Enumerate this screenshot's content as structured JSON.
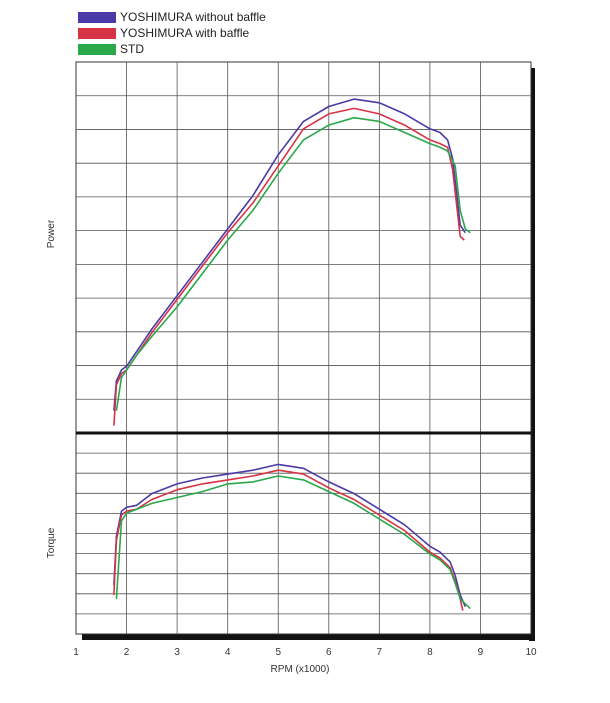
{
  "chart_data": [
    {
      "type": "line",
      "title": "",
      "ylabel": "Power",
      "xlabel": "",
      "xlim": [
        1,
        10
      ],
      "ylim": [
        0,
        100
      ],
      "grid": true,
      "series": [
        {
          "name": "YOSHIMURA without baffle",
          "color": "#4a3aa8",
          "points": [
            [
              1.75,
              6
            ],
            [
              1.8,
              14
            ],
            [
              1.9,
              17
            ],
            [
              2.0,
              18
            ],
            [
              2.2,
              22
            ],
            [
              2.5,
              28
            ],
            [
              3.0,
              37
            ],
            [
              3.5,
              46
            ],
            [
              4.0,
              55
            ],
            [
              4.5,
              64
            ],
            [
              5.0,
              75
            ],
            [
              5.5,
              84
            ],
            [
              6.0,
              88
            ],
            [
              6.5,
              90
            ],
            [
              7.0,
              89
            ],
            [
              7.5,
              86
            ],
            [
              8.0,
              82
            ],
            [
              8.2,
              81
            ],
            [
              8.35,
              79
            ],
            [
              8.45,
              74
            ],
            [
              8.55,
              62
            ],
            [
              8.6,
              56
            ],
            [
              8.7,
              54
            ]
          ]
        },
        {
          "name": "YOSHIMURA with baffle",
          "color": "#d63346",
          "points": [
            [
              1.75,
              2
            ],
            [
              1.8,
              13
            ],
            [
              1.9,
              16
            ],
            [
              2.0,
              17
            ],
            [
              2.2,
              21
            ],
            [
              2.5,
              27
            ],
            [
              3.0,
              36
            ],
            [
              3.5,
              45
            ],
            [
              4.0,
              54
            ],
            [
              4.5,
              62
            ],
            [
              5.0,
              72
            ],
            [
              5.5,
              82
            ],
            [
              6.0,
              86
            ],
            [
              6.5,
              87.5
            ],
            [
              7.0,
              86
            ],
            [
              7.5,
              83
            ],
            [
              8.0,
              79
            ],
            [
              8.2,
              78
            ],
            [
              8.35,
              77
            ],
            [
              8.45,
              71
            ],
            [
              8.55,
              59
            ],
            [
              8.6,
              53
            ],
            [
              8.68,
              52
            ]
          ]
        },
        {
          "name": "STD",
          "color": "#2aa84a",
          "points": [
            [
              1.8,
              6
            ],
            [
              1.9,
              15
            ],
            [
              2.0,
              17
            ],
            [
              2.2,
              21
            ],
            [
              2.5,
              26
            ],
            [
              3.0,
              34
            ],
            [
              3.5,
              43
            ],
            [
              4.0,
              52
            ],
            [
              4.5,
              60
            ],
            [
              5.0,
              70
            ],
            [
              5.5,
              79
            ],
            [
              6.0,
              83
            ],
            [
              6.5,
              85
            ],
            [
              7.0,
              84
            ],
            [
              7.5,
              81
            ],
            [
              8.0,
              78
            ],
            [
              8.2,
              77
            ],
            [
              8.35,
              76
            ],
            [
              8.5,
              72
            ],
            [
              8.6,
              60
            ],
            [
              8.7,
              55
            ],
            [
              8.8,
              54
            ]
          ]
        }
      ]
    },
    {
      "type": "line",
      "title": "",
      "ylabel": "Torque",
      "xlabel": "RPM (x1000)",
      "xlim": [
        1,
        10
      ],
      "ylim": [
        0,
        100
      ],
      "xticks": [
        "1",
        "2",
        "3",
        "4",
        "5",
        "6",
        "7",
        "8",
        "9",
        "10"
      ],
      "grid": true,
      "series": [
        {
          "name": "YOSHIMURA without baffle",
          "color": "#4a3aa8",
          "points": [
            [
              1.75,
              25
            ],
            [
              1.8,
              50
            ],
            [
              1.9,
              63
            ],
            [
              2.0,
              65
            ],
            [
              2.2,
              66
            ],
            [
              2.5,
              72
            ],
            [
              3.0,
              77
            ],
            [
              3.5,
              80
            ],
            [
              4.0,
              82
            ],
            [
              4.5,
              84
            ],
            [
              5.0,
              87
            ],
            [
              5.5,
              85
            ],
            [
              6.0,
              78
            ],
            [
              6.5,
              72
            ],
            [
              7.0,
              64
            ],
            [
              7.5,
              56
            ],
            [
              8.0,
              45
            ],
            [
              8.2,
              42
            ],
            [
              8.4,
              37
            ],
            [
              8.5,
              30
            ],
            [
              8.6,
              20
            ],
            [
              8.7,
              14
            ]
          ]
        },
        {
          "name": "YOSHIMURA with baffle",
          "color": "#d63346",
          "points": [
            [
              1.75,
              20
            ],
            [
              1.8,
              48
            ],
            [
              1.9,
              61
            ],
            [
              2.0,
              63
            ],
            [
              2.2,
              64
            ],
            [
              2.5,
              69
            ],
            [
              3.0,
              74
            ],
            [
              3.5,
              77
            ],
            [
              4.0,
              79
            ],
            [
              4.5,
              81
            ],
            [
              5.0,
              84
            ],
            [
              5.5,
              82
            ],
            [
              6.0,
              75
            ],
            [
              6.5,
              69
            ],
            [
              7.0,
              61
            ],
            [
              7.5,
              53
            ],
            [
              8.0,
              42
            ],
            [
              8.2,
              39
            ],
            [
              8.4,
              34
            ],
            [
              8.5,
              27
            ],
            [
              8.6,
              18
            ],
            [
              8.65,
              12
            ]
          ]
        },
        {
          "name": "STD",
          "color": "#2aa84a",
          "points": [
            [
              1.8,
              18
            ],
            [
              1.9,
              58
            ],
            [
              2.0,
              62
            ],
            [
              2.2,
              64
            ],
            [
              2.5,
              67
            ],
            [
              3.0,
              70
            ],
            [
              3.5,
              73
            ],
            [
              4.0,
              77
            ],
            [
              4.5,
              78
            ],
            [
              5.0,
              81
            ],
            [
              5.5,
              79
            ],
            [
              6.0,
              73
            ],
            [
              6.5,
              67
            ],
            [
              7.0,
              59
            ],
            [
              7.5,
              51
            ],
            [
              8.0,
              41
            ],
            [
              8.2,
              38
            ],
            [
              8.4,
              33
            ],
            [
              8.5,
              26
            ],
            [
              8.6,
              18
            ],
            [
              8.8,
              13
            ]
          ]
        }
      ]
    }
  ]
}
